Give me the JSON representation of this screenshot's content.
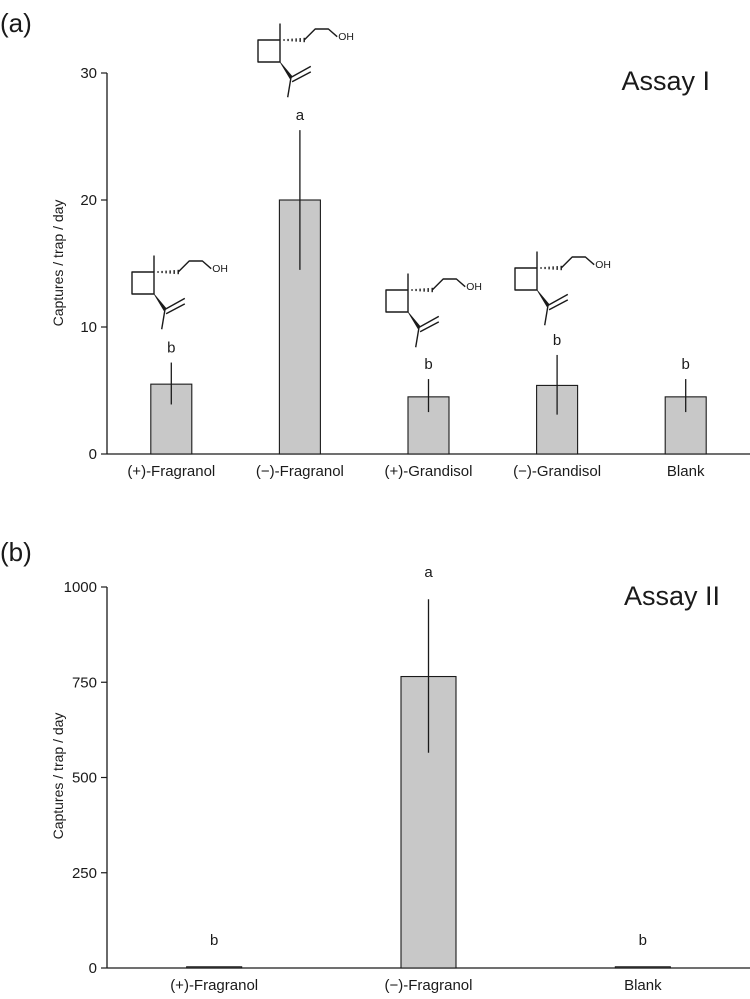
{
  "chart_data": [
    {
      "panel_label": "(a)",
      "type": "bar",
      "annotation": "Assay I",
      "ylabel": "Captures / trap / day",
      "ylim": [
        0,
        30
      ],
      "yticks": [
        0,
        10,
        20,
        30
      ],
      "categories": [
        "(+)-Fragranol",
        "(−)-Fragranol",
        "(+)-Grandisol",
        "(−)-Grandisol",
        "Blank"
      ],
      "values": [
        5.5,
        20.0,
        4.5,
        5.4,
        4.5
      ],
      "error_low": [
        3.9,
        14.5,
        3.3,
        3.1,
        3.3
      ],
      "error_high": [
        7.2,
        25.5,
        5.9,
        7.8,
        5.9
      ],
      "letters": [
        "b",
        "a",
        "b",
        "b",
        "b"
      ],
      "structures": [
        {
          "category_index": 0,
          "oh_label": "OH"
        },
        {
          "category_index": 1,
          "oh_label": "OH"
        },
        {
          "category_index": 2,
          "oh_label": "OH"
        },
        {
          "category_index": 3,
          "oh_label": "OH"
        }
      ],
      "bar_color": "#c8c8c8",
      "grid": false
    },
    {
      "panel_label": "(b)",
      "type": "bar",
      "annotation": "Assay II",
      "ylabel": "Captures / trap / day",
      "ylim": [
        0,
        1000
      ],
      "yticks": [
        0,
        250,
        500,
        750,
        1000
      ],
      "categories": [
        "(+)-Fragranol",
        "(−)-Fragranol",
        "Blank"
      ],
      "values": [
        2,
        765,
        2
      ],
      "error_low": [
        2,
        565,
        2
      ],
      "error_high": [
        2,
        968,
        2
      ],
      "letters": [
        "b",
        "a",
        "b"
      ],
      "bar_color": "#c8c8c8",
      "grid": false
    }
  ]
}
